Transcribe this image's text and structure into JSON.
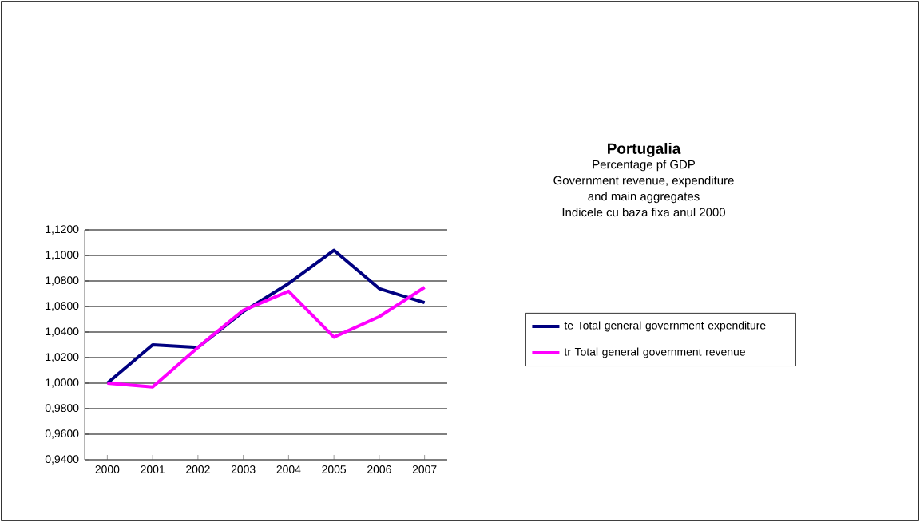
{
  "chart_data": {
    "type": "line",
    "title": "Portugalia",
    "subtitle": "Percentage pf GDP\nGovernment revenue, expenditure\nand main aggregates\nIndicele cu baza fixa anul 2000",
    "categories": [
      "2000",
      "2001",
      "2002",
      "2003",
      "2004",
      "2005",
      "2006",
      "2007"
    ],
    "series": [
      {
        "name": "te Total general government expenditure",
        "color": "#000080",
        "values": [
          1.0,
          1.03,
          1.028,
          1.056,
          1.078,
          1.104,
          1.074,
          1.063
        ]
      },
      {
        "name": "tr Total general government revenue",
        "color": "#ff00ff",
        "values": [
          1.0,
          0.997,
          1.028,
          1.057,
          1.072,
          1.036,
          1.052,
          1.075
        ]
      }
    ],
    "ylim": [
      0.94,
      1.12
    ],
    "yticks": [
      {
        "value": 0.94,
        "label": "0,9400"
      },
      {
        "value": 0.96,
        "label": "0,9600"
      },
      {
        "value": 0.98,
        "label": "0,9800"
      },
      {
        "value": 1.0,
        "label": "1,0000"
      },
      {
        "value": 1.02,
        "label": "1,0200"
      },
      {
        "value": 1.04,
        "label": "1,0400"
      },
      {
        "value": 1.06,
        "label": "1,0600"
      },
      {
        "value": 1.08,
        "label": "1,0800"
      },
      {
        "value": 1.1,
        "label": "1,1000"
      },
      {
        "value": 1.12,
        "label": "1,1200"
      }
    ],
    "grid": "y",
    "legend": "right",
    "marker": "none",
    "line_style": "solid"
  }
}
